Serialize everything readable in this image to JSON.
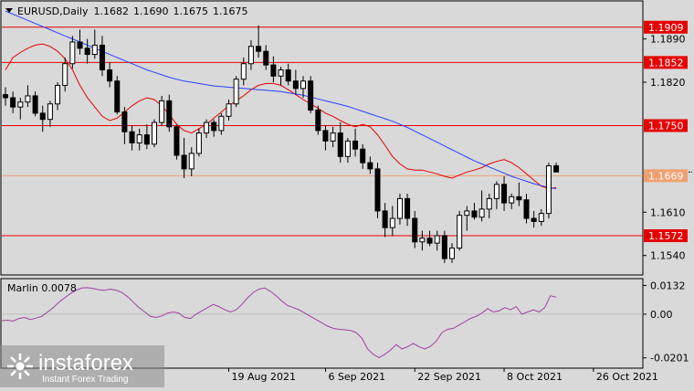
{
  "chart_data": [
    {
      "type": "candlestick",
      "symbol": "EURUSD",
      "timeframe": "Daily",
      "ohlc_readout": [
        "1.1682",
        "1.1690",
        "1.1675",
        "1.1675"
      ],
      "ylim": [
        1.151,
        1.195
      ],
      "y_ticks": [
        "1.1890",
        "1.1820",
        "1.1610",
        "1.1540"
      ],
      "x_ticks": [
        {
          "label": "19 Aug 2021",
          "index": 30
        },
        {
          "label": "6 Sep 2021",
          "index": 43
        },
        {
          "label": "22 Sep 2021",
          "index": 55
        },
        {
          "label": "8 Oct 2021",
          "index": 67
        },
        {
          "label": "26 Oct 2021",
          "index": 79
        }
      ],
      "levels": [
        {
          "value": 1.1909,
          "label": "1.1909",
          "color": "#e60000"
        },
        {
          "value": 1.1852,
          "label": "1.1852",
          "color": "#e60000"
        },
        {
          "value": 1.175,
          "label": "1.1750",
          "color": "#e60000"
        },
        {
          "value": 1.1669,
          "label": "1.1669",
          "color": "#f0a070"
        },
        {
          "value": 1.1572,
          "label": "1.1572",
          "color": "#e60000"
        }
      ],
      "current_price": "1.1675",
      "candles": [
        [
          1.18,
          1.1812,
          1.1782,
          1.1795
        ],
        [
          1.1795,
          1.1805,
          1.177,
          1.178
        ],
        [
          1.178,
          1.1795,
          1.176,
          1.1788
        ],
        [
          1.1788,
          1.1815,
          1.178,
          1.1798
        ],
        [
          1.1798,
          1.1805,
          1.1765,
          1.177
        ],
        [
          1.177,
          1.1782,
          1.174,
          1.176
        ],
        [
          1.176,
          1.179,
          1.1748,
          1.1785
        ],
        [
          1.1785,
          1.182,
          1.1775,
          1.1815
        ],
        [
          1.1815,
          1.186,
          1.1805,
          1.185
        ],
        [
          1.185,
          1.1895,
          1.1842,
          1.1885
        ],
        [
          1.1885,
          1.1905,
          1.1865,
          1.1875
        ],
        [
          1.1875,
          1.189,
          1.185,
          1.1865
        ],
        [
          1.1865,
          1.1905,
          1.1858,
          1.188
        ],
        [
          1.188,
          1.1895,
          1.183,
          1.184
        ],
        [
          1.184,
          1.1852,
          1.1812,
          1.1822
        ],
        [
          1.1822,
          1.183,
          1.1768,
          1.1772
        ],
        [
          1.1772,
          1.178,
          1.172,
          1.174
        ],
        [
          1.174,
          1.175,
          1.171,
          1.1722
        ],
        [
          1.1722,
          1.1745,
          1.171,
          1.1735
        ],
        [
          1.1735,
          1.1752,
          1.1712,
          1.172
        ],
        [
          1.172,
          1.176,
          1.1715,
          1.1755
        ],
        [
          1.1755,
          1.1798,
          1.175,
          1.179
        ],
        [
          1.179,
          1.18,
          1.174,
          1.1748
        ],
        [
          1.1748,
          1.1752,
          1.1695,
          1.1702
        ],
        [
          1.1702,
          1.173,
          1.1665,
          1.168
        ],
        [
          1.168,
          1.1715,
          1.1668,
          1.1705
        ],
        [
          1.1705,
          1.1745,
          1.17,
          1.1738
        ],
        [
          1.1738,
          1.176,
          1.173,
          1.1755
        ],
        [
          1.1755,
          1.176,
          1.1732,
          1.1742
        ],
        [
          1.1742,
          1.177,
          1.1735,
          1.1765
        ],
        [
          1.1765,
          1.1792,
          1.1758,
          1.1785
        ],
        [
          1.1785,
          1.183,
          1.178,
          1.1825
        ],
        [
          1.1825,
          1.186,
          1.1815,
          1.185
        ],
        [
          1.185,
          1.1888,
          1.184,
          1.1878
        ],
        [
          1.1878,
          1.1912,
          1.186,
          1.187
        ],
        [
          1.187,
          1.188,
          1.184,
          1.1848
        ],
        [
          1.1848,
          1.1862,
          1.182,
          1.183
        ],
        [
          1.183,
          1.1845,
          1.1815,
          1.184
        ],
        [
          1.184,
          1.185,
          1.1815,
          1.1822
        ],
        [
          1.1822,
          1.184,
          1.18,
          1.181
        ],
        [
          1.181,
          1.183,
          1.1795,
          1.1822
        ],
        [
          1.1822,
          1.183,
          1.177,
          1.1775
        ],
        [
          1.1775,
          1.1782,
          1.1735,
          1.1742
        ],
        [
          1.1742,
          1.175,
          1.171,
          1.1725
        ],
        [
          1.1725,
          1.1748,
          1.1715,
          1.1738
        ],
        [
          1.1738,
          1.1755,
          1.169,
          1.17
        ],
        [
          1.17,
          1.173,
          1.169,
          1.1725
        ],
        [
          1.1725,
          1.1745,
          1.17,
          1.1712
        ],
        [
          1.1712,
          1.172,
          1.168,
          1.169
        ],
        [
          1.169,
          1.17,
          1.1672,
          1.168
        ],
        [
          1.168,
          1.169,
          1.16,
          1.1612
        ],
        [
          1.1612,
          1.1625,
          1.157,
          1.1585
        ],
        [
          1.1585,
          1.162,
          1.1572,
          1.16
        ],
        [
          1.16,
          1.164,
          1.159,
          1.1632
        ],
        [
          1.1632,
          1.164,
          1.1588,
          1.16
        ],
        [
          1.16,
          1.1612,
          1.1552,
          1.1562
        ],
        [
          1.1562,
          1.158,
          1.1548,
          1.1568
        ],
        [
          1.1568,
          1.158,
          1.1555,
          1.156
        ],
        [
          1.156,
          1.158,
          1.1548,
          1.1572
        ],
        [
          1.1572,
          1.158,
          1.1528,
          1.1535
        ],
        [
          1.1535,
          1.156,
          1.1528,
          1.1552
        ],
        [
          1.1552,
          1.1612,
          1.1548,
          1.1605
        ],
        [
          1.1605,
          1.162,
          1.158,
          1.1612
        ],
        [
          1.1612,
          1.1625,
          1.1598,
          1.1602
        ],
        [
          1.1602,
          1.1645,
          1.1595,
          1.1615
        ],
        [
          1.1615,
          1.164,
          1.16,
          1.1632
        ],
        [
          1.1632,
          1.166,
          1.1615,
          1.1655
        ],
        [
          1.1655,
          1.1668,
          1.1612,
          1.1625
        ],
        [
          1.1625,
          1.164,
          1.1615,
          1.1635
        ],
        [
          1.1635,
          1.1658,
          1.162,
          1.163
        ],
        [
          1.163,
          1.164,
          1.1592,
          1.16
        ],
        [
          1.16,
          1.1612,
          1.1585,
          1.1595
        ],
        [
          1.1595,
          1.1615,
          1.1588,
          1.1608
        ],
        [
          1.1608,
          1.169,
          1.16,
          1.1685
        ],
        [
          1.1685,
          1.169,
          1.1675,
          1.1675
        ]
      ],
      "overlays": [
        {
          "color": "#e60000",
          "values": [
            1.184,
            1.186,
            1.1868,
            1.1875,
            1.188,
            1.1882,
            1.1878,
            1.187,
            1.1858,
            1.184,
            1.1815,
            1.1795,
            1.178,
            1.1765,
            1.1758,
            1.1762,
            1.1772,
            1.1782,
            1.179,
            1.1795,
            1.1792,
            1.1782,
            1.1768,
            1.1752,
            1.1742,
            1.1738,
            1.1745,
            1.1752,
            1.1762,
            1.1772,
            1.1782,
            1.179,
            1.1798,
            1.1808,
            1.1815,
            1.1818,
            1.1818,
            1.1815,
            1.1808,
            1.18,
            1.1792,
            1.1785,
            1.1778,
            1.177,
            1.1765,
            1.1758,
            1.1752,
            1.1748,
            1.1752,
            1.1748,
            1.1735,
            1.1718,
            1.17,
            1.1688,
            1.168,
            1.1678,
            1.1678,
            1.1675,
            1.1672,
            1.1668,
            1.1665,
            1.167,
            1.1675,
            1.1678,
            1.1682,
            1.1688,
            1.1692,
            1.1695,
            1.169,
            1.1682,
            1.1672,
            1.1662,
            1.1652,
            1.1648,
            1.165
          ]
        },
        {
          "color": "#2a3fff",
          "values": [
            1.1935,
            1.193,
            1.1925,
            1.192,
            1.1915,
            1.191,
            1.1905,
            1.19,
            1.1895,
            1.189,
            1.1885,
            1.188,
            1.1875,
            1.187,
            1.1865,
            1.186,
            1.1855,
            1.185,
            1.1845,
            1.184,
            1.1836,
            1.1832,
            1.1828,
            1.1825,
            1.1822,
            1.182,
            1.1818,
            1.1816,
            1.1814,
            1.1813,
            1.1812,
            1.1811,
            1.181,
            1.1809,
            1.1808,
            1.1807,
            1.1806,
            1.1805,
            1.1803,
            1.1801,
            1.1799,
            1.1796,
            1.1793,
            1.179,
            1.1787,
            1.1784,
            1.1781,
            1.1777,
            1.1773,
            1.1769,
            1.1765,
            1.1761,
            1.1757,
            1.1752,
            1.1747,
            1.1741,
            1.1735,
            1.1729,
            1.1723,
            1.1717,
            1.1711,
            1.1705,
            1.1699,
            1.1693,
            1.1688,
            1.1683,
            1.1678,
            1.1673,
            1.1668,
            1.1664,
            1.166,
            1.1656,
            1.1653,
            1.165,
            1.1648
          ]
        }
      ]
    },
    {
      "type": "line",
      "name": "Marlin",
      "label": "Marlin 0.0078",
      "ylim": [
        -0.024,
        0.0155
      ],
      "y_ticks": [
        "0.0132",
        "0.00",
        "-0.0201"
      ],
      "color": "#a040a0",
      "values": [
        -0.003,
        -0.0028,
        -0.0032,
        -0.002,
        -0.0015,
        -0.0025,
        -0.0018,
        -0.001,
        0.001,
        0.003,
        0.0055,
        0.0075,
        0.0095,
        0.011,
        0.012,
        0.0122,
        0.0118,
        0.0112,
        0.011,
        0.0115,
        0.011,
        0.01,
        0.008,
        0.0055,
        0.003,
        0.001,
        -0.001,
        -0.0015,
        -0.0008,
        0.0005,
        0.001,
        0.0005,
        -0.0015,
        -0.002,
        0.0,
        0.0015,
        0.003,
        0.0045,
        0.0035,
        0.002,
        0.001,
        0.002,
        0.0045,
        0.0075,
        0.01,
        0.0115,
        0.012,
        0.0105,
        0.0085,
        0.006,
        0.004,
        0.003,
        0.002,
        0.0005,
        -0.001,
        -0.0025,
        -0.004,
        -0.0055,
        -0.0065,
        -0.007,
        -0.0072,
        -0.0075,
        -0.0085,
        -0.011,
        -0.016,
        -0.0185,
        -0.02,
        -0.0185,
        -0.0165,
        -0.014,
        -0.016,
        -0.015,
        -0.0135,
        -0.015,
        -0.016,
        -0.0148,
        -0.0125,
        -0.0085,
        -0.007,
        -0.0065,
        -0.005,
        -0.0035,
        -0.002,
        -0.001,
        0.0005,
        0.0025,
        0.001,
        0.0015,
        0.003,
        0.002,
        0.0035,
        0.0,
        0.001,
        0.002,
        0.001,
        0.003,
        0.0085,
        0.0078
      ]
    }
  ],
  "watermark": {
    "brand": "instaforex",
    "tagline": "Instant Forex Trading"
  },
  "colors": {
    "bg": "#d9d9d9",
    "bull": "#ffffff",
    "bear": "#000000",
    "level": "#e60000",
    "current": "#f0a070",
    "marlin": "#a040a0"
  }
}
